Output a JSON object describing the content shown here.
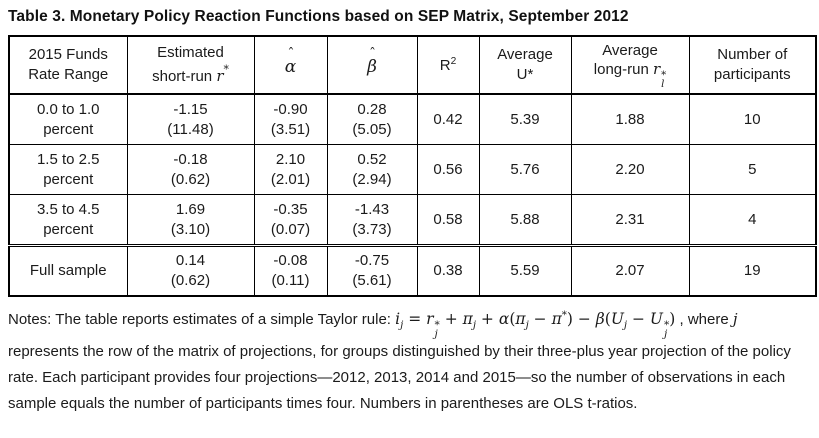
{
  "title": "Table 3. Monetary Policy Reaction Functions based on SEP Matrix, September 2012",
  "colors": {
    "border": "#000000",
    "text": "#1b1b1b",
    "background": "#ffffff"
  },
  "table": {
    "header": {
      "range": {
        "line1": "2015 Funds",
        "line2": "Rate Range"
      },
      "shortrun": {
        "line1": "Estimated",
        "line2": "short-run ",
        "symbol": "r",
        "sup": "*"
      },
      "alpha": {
        "symbol": "α",
        "hat": "ˆ"
      },
      "beta": {
        "symbol": "β",
        "hat": "ˆ"
      },
      "r2": {
        "base": "R",
        "sup": "2"
      },
      "avg_u": {
        "line1": "Average",
        "line2": "U*"
      },
      "longrun": {
        "line1": "Average",
        "line2": "long-run ",
        "symbol": "r",
        "sub": "l",
        "sup": "*"
      },
      "participants": {
        "line1": "Number of",
        "line2": "participants"
      }
    },
    "rows": [
      {
        "range1": "0.0 to 1.0",
        "range2": "percent",
        "shortrun": "-1.15",
        "shortrun_t": "(11.48)",
        "alpha": "-0.90",
        "alpha_t": "(3.51)",
        "beta": "0.28",
        "beta_t": "(5.05)",
        "r2": "0.42",
        "avg_u": "5.39",
        "longrun": "1.88",
        "participants": "10"
      },
      {
        "range1": "1.5 to 2.5",
        "range2": "percent",
        "shortrun": "-0.18",
        "shortrun_t": "(0.62)",
        "alpha": "2.10",
        "alpha_t": "(2.01)",
        "beta": "0.52",
        "beta_t": "(2.94)",
        "r2": "0.56",
        "avg_u": "5.76",
        "longrun": "2.20",
        "participants": "5"
      },
      {
        "range1": "3.5 to 4.5",
        "range2": "percent",
        "shortrun": "1.69",
        "shortrun_t": "(3.10)",
        "alpha": "-0.35",
        "alpha_t": "(0.07)",
        "beta": "-1.43",
        "beta_t": "(3.73)",
        "r2": "0.58",
        "avg_u": "5.88",
        "longrun": "2.31",
        "participants": "4"
      },
      {
        "range1": "Full sample",
        "range2": "",
        "shortrun": "0.14",
        "shortrun_t": "(0.62)",
        "alpha": "-0.08",
        "alpha_t": "(0.11)",
        "beta": "-0.75",
        "beta_t": "(5.61)",
        "r2": "0.38",
        "avg_u": "5.59",
        "longrun": "2.07",
        "participants": "19"
      }
    ]
  },
  "notes": {
    "lead": "Notes: The table reports estimates of a simple Taylor rule: ",
    "formula_tokens": [
      {
        "k": "var",
        "t": "i"
      },
      {
        "k": "sub",
        "t": "j"
      },
      {
        "k": "op",
        "t": " = "
      },
      {
        "k": "var",
        "t": "r"
      },
      {
        "k": "stack",
        "sup": "*",
        "sub": "j"
      },
      {
        "k": "op",
        "t": " + "
      },
      {
        "k": "var",
        "t": "π"
      },
      {
        "k": "sub",
        "t": "j"
      },
      {
        "k": "op",
        "t": " + "
      },
      {
        "k": "var",
        "t": "α"
      },
      {
        "k": "op",
        "t": "("
      },
      {
        "k": "var",
        "t": "π"
      },
      {
        "k": "sub",
        "t": "j"
      },
      {
        "k": "op",
        "t": " − "
      },
      {
        "k": "var",
        "t": "π"
      },
      {
        "k": "sup",
        "t": "*"
      },
      {
        "k": "op",
        "t": ")"
      },
      {
        "k": "op",
        "t": " − "
      },
      {
        "k": "var",
        "t": "β"
      },
      {
        "k": "op",
        "t": "("
      },
      {
        "k": "var",
        "t": "U"
      },
      {
        "k": "sub",
        "t": "j"
      },
      {
        "k": "op",
        "t": " − "
      },
      {
        "k": "var",
        "t": "U"
      },
      {
        "k": "stack",
        "sup": "*",
        "sub": "j"
      },
      {
        "k": "op",
        "t": ")"
      }
    ],
    "after_formula": " , where ",
    "where_symbol": "j",
    "continuation": " represents the row of the matrix of projections, for groups distinguished by their three-plus year projection of the policy rate. Each participant provides four projections—2012, 2013, 2014 and 2015—so the number of observations in each sample equals the number of participants times four. Numbers in parentheses are OLS t-ratios."
  }
}
